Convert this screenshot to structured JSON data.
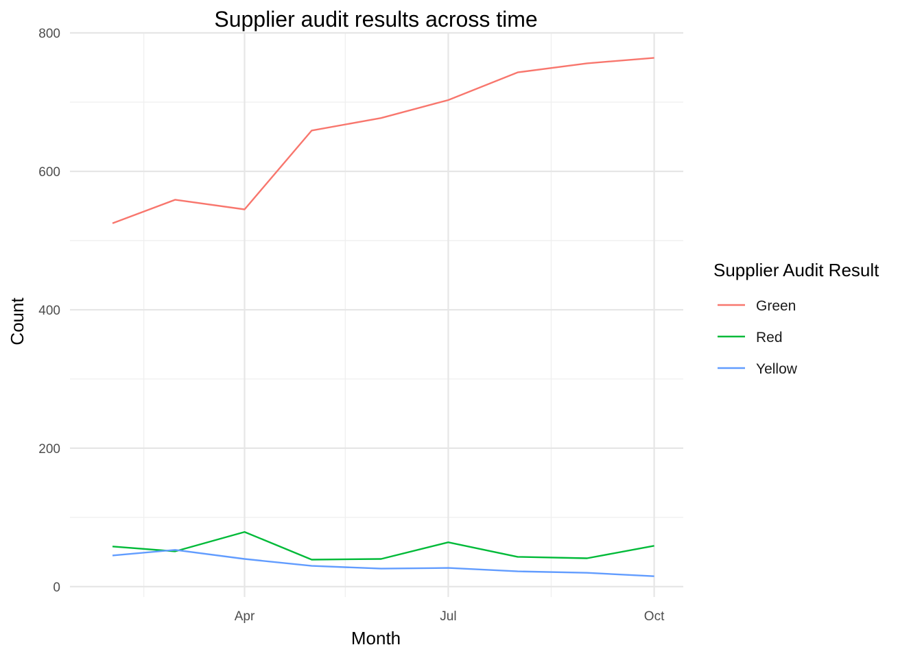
{
  "chart_data": {
    "type": "line",
    "title": "Supplier audit results across time",
    "xlabel": "Month",
    "ylabel": "Count",
    "x": [
      "2023-02-01",
      "2023-03-01",
      "2023-04-01",
      "2023-05-01",
      "2023-06-01",
      "2023-07-01",
      "2023-08-01",
      "2023-09-01",
      "2023-10-01"
    ],
    "x_ticks": [
      {
        "date": "2023-04-01",
        "label": "Apr"
      },
      {
        "date": "2023-07-01",
        "label": "Jul"
      },
      {
        "date": "2023-10-01",
        "label": "Oct"
      }
    ],
    "x_minor_ticks": [
      "2023-02-15",
      "2023-05-16",
      "2023-08-16"
    ],
    "x_range": [
      "2023-01-13",
      "2023-10-14"
    ],
    "y_ticks": [
      0,
      200,
      400,
      600,
      800
    ],
    "y_minor_ticks": [
      100,
      300,
      500,
      700
    ],
    "ylim": [
      -15,
      800
    ],
    "grid": true,
    "legend": {
      "title": "Supplier Audit Result",
      "position": "right"
    },
    "series": [
      {
        "name": "Green",
        "color": "#F8766D",
        "values": [
          525,
          559,
          545,
          659,
          677,
          703,
          743,
          756,
          764
        ]
      },
      {
        "name": "Red",
        "color": "#00BA38",
        "values": [
          58,
          51,
          79,
          39,
          40,
          64,
          43,
          41,
          59
        ]
      },
      {
        "name": "Yellow",
        "color": "#619CFF",
        "values": [
          45,
          53,
          40,
          30,
          26,
          27,
          22,
          20,
          15
        ]
      }
    ]
  }
}
